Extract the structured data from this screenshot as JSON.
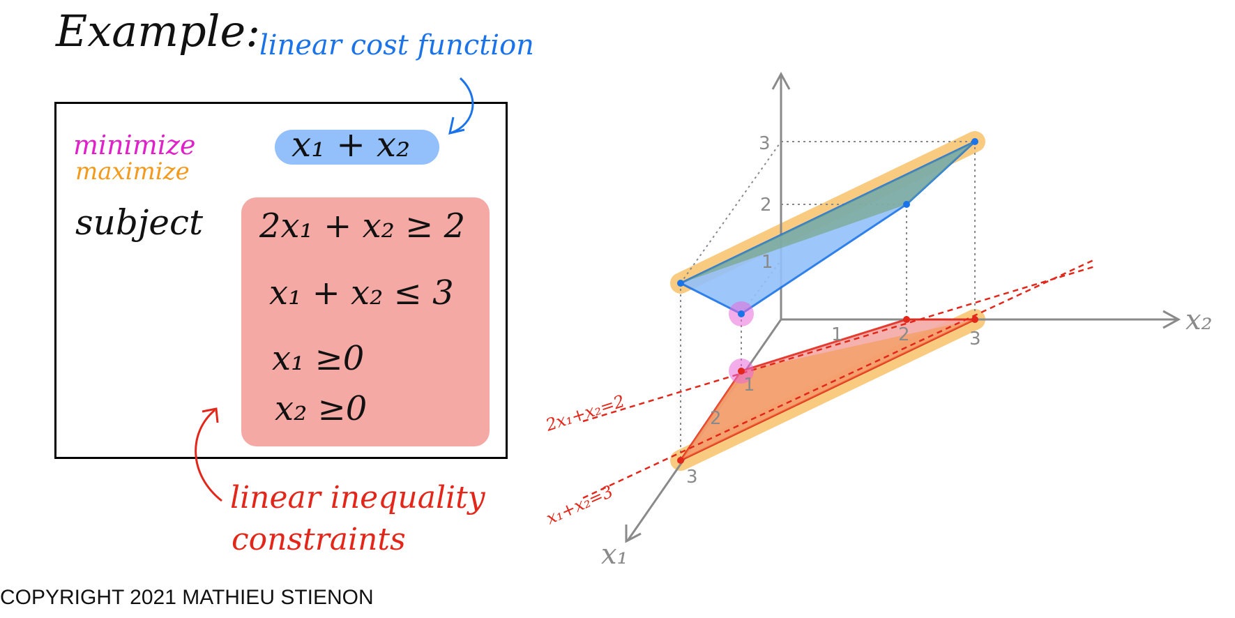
{
  "title": "Example:",
  "annotations": {
    "cost_note": "linear cost function",
    "inequality_note_line1": "linear inequality",
    "inequality_note_line2": "constraints"
  },
  "problem": {
    "minimize_label": "minimize",
    "maximize_label": "maximize",
    "subject_label": "subject",
    "cost_expression": "x₁ + x₂",
    "constraints": [
      "2x₁ + x₂ ≥ 2",
      "x₁ + x₂ ≤ 3",
      "x₁ ≥0",
      "x₂ ≥0"
    ]
  },
  "diagram": {
    "axis_labels": {
      "x1": "x₁",
      "x2": "x₂"
    },
    "ticks": {
      "vertical": [
        "3",
        "2",
        "1"
      ],
      "x2": [
        "1",
        "2",
        "3"
      ],
      "x1": [
        "1",
        "2",
        "3"
      ]
    },
    "line_labels": {
      "line1": "2x₁+x₂=2",
      "line2": "x₁+x₂=3"
    }
  },
  "colors": {
    "cost_blue": "#93c0fa",
    "constraint_red": "#f5a9a5",
    "minimize_magenta": "#e020c8",
    "maximize_orange": "#f39a1c",
    "annotation_blue": "#1a73e8",
    "annotation_red": "#e2271a",
    "highlight_orange": "#f7c26a"
  },
  "copyright": "COPYRIGHT 2021 MATHIEU STIENON"
}
